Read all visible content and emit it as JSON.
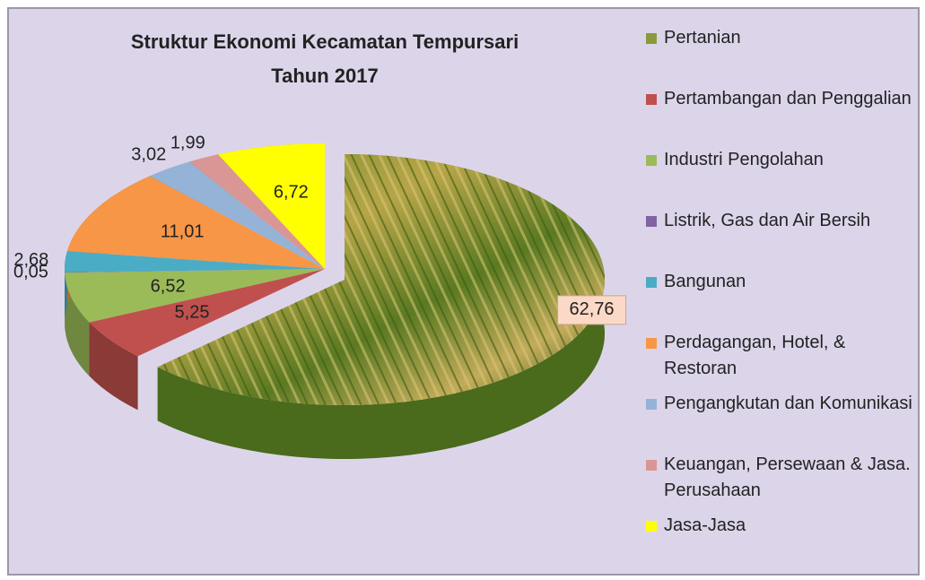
{
  "chart_data": {
    "type": "pie",
    "title": [
      "Struktur Ekonomi Kecamatan Tempursari",
      "Tahun 2017"
    ],
    "categories": [
      "Pertanian",
      "Pertambangan dan Penggalian",
      "Industri Pengolahan",
      "Listrik, Gas dan Air Bersih",
      "Bangunan",
      "Perdagangan, Hotel, & Restoran",
      "Pengangkutan dan Komunikasi",
      "Keuangan, Persewaan & Jasa. Perusahaan",
      "Jasa-Jasa"
    ],
    "values": [
      62.76,
      5.25,
      6.52,
      0.05,
      2.68,
      11.01,
      3.02,
      1.99,
      6.72
    ],
    "value_labels": [
      "62,76",
      "5,25",
      "6,52",
      "0,05",
      "2,68",
      "11,01",
      "3,02",
      "1,99",
      "6,72"
    ],
    "colors": [
      "#8a9a3a",
      "#c0504d",
      "#9bbb59",
      "#8064a2",
      "#4bacc6",
      "#f79646",
      "#95b3d7",
      "#d99694",
      "#ffff00"
    ],
    "legend": "right"
  }
}
